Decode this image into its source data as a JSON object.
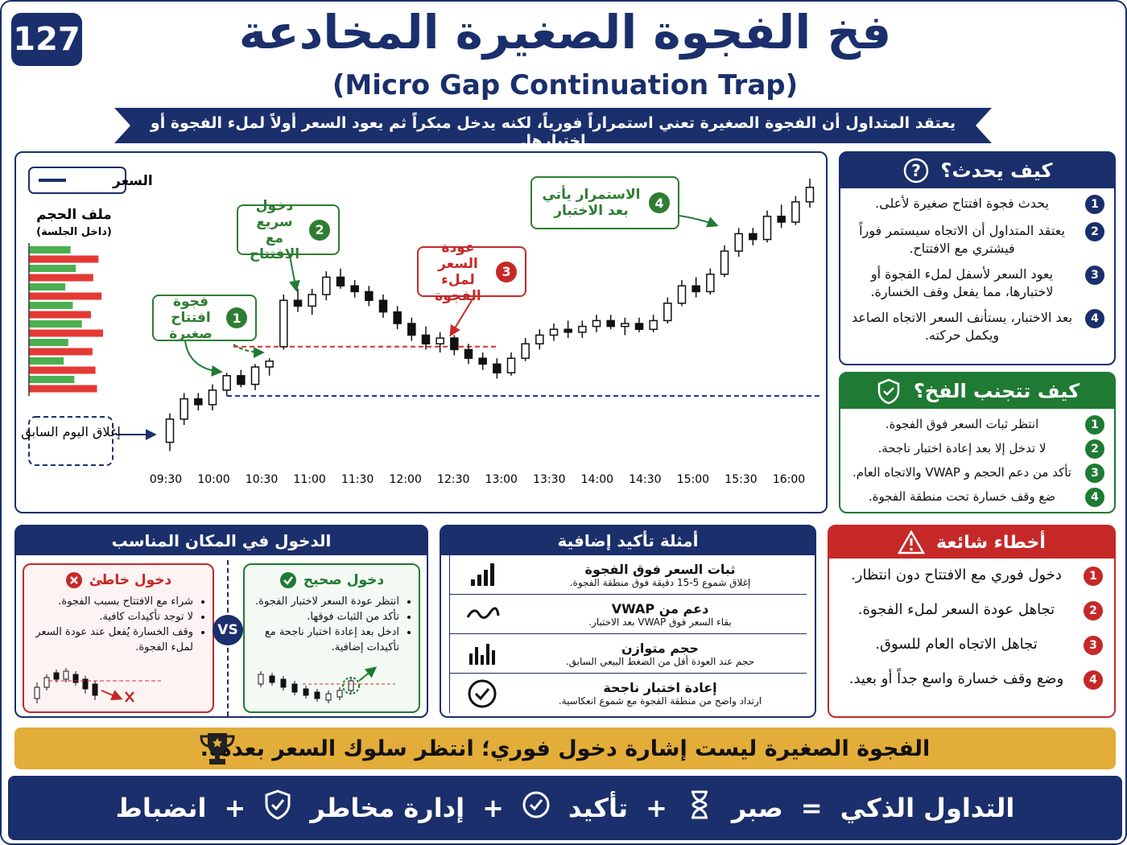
{
  "badge": "127",
  "header": {
    "title": "فخ الفجوة الصغيرة المخادعة",
    "subtitle": "(Micro Gap Continuation Trap)",
    "banner": "يعتقد المتداول أن الفجوة الصغيرة تعني استمراراً فورياً، لكنه يدخل مبكراً ثم يعود السعر أولاً لملء الفجوة أو اختبارها."
  },
  "price_chart": {
    "type": "candlestick",
    "legend": "السعر",
    "volume_title": "ملف الحجم",
    "volume_subtitle": "(داخل الجلسة)",
    "prev_close_label": "إغلاق اليوم السابق",
    "x_labels": [
      "09:30",
      "10:00",
      "10:30",
      "11:00",
      "11:30",
      "12:00",
      "12:30",
      "13:00",
      "13:30",
      "14:00",
      "14:30",
      "15:00",
      "15:30",
      "16:00"
    ],
    "ylim": [
      0,
      100
    ],
    "candles": [
      [
        4,
        14,
        1,
        12
      ],
      [
        12,
        21,
        10,
        19
      ],
      [
        19,
        21,
        15,
        17
      ],
      [
        17,
        24,
        15,
        22
      ],
      [
        22,
        28,
        20,
        27
      ],
      [
        27,
        29,
        23,
        24
      ],
      [
        24,
        31,
        22,
        30
      ],
      [
        30,
        33,
        27,
        32
      ],
      [
        37,
        55,
        36,
        53
      ],
      [
        53,
        57,
        49,
        51
      ],
      [
        51,
        57,
        48,
        55
      ],
      [
        55,
        63,
        53,
        61
      ],
      [
        61,
        64,
        57,
        58
      ],
      [
        58,
        60,
        54,
        56
      ],
      [
        56,
        58,
        51,
        53
      ],
      [
        53,
        55,
        47,
        49
      ],
      [
        49,
        51,
        43,
        45
      ],
      [
        45,
        47,
        39,
        41
      ],
      [
        41,
        44,
        36,
        38
      ],
      [
        38,
        42,
        35,
        40
      ],
      [
        40,
        41,
        34,
        36
      ],
      [
        36,
        38,
        31,
        33
      ],
      [
        33,
        35,
        29,
        31
      ],
      [
        31,
        33,
        26,
        28
      ],
      [
        28,
        35,
        27,
        33
      ],
      [
        33,
        40,
        32,
        38
      ],
      [
        38,
        43,
        36,
        41
      ],
      [
        41,
        45,
        39,
        43
      ],
      [
        43,
        46,
        40,
        42
      ],
      [
        42,
        46,
        40,
        44
      ],
      [
        44,
        48,
        42,
        46
      ],
      [
        46,
        48,
        43,
        44
      ],
      [
        44,
        47,
        41,
        45
      ],
      [
        45,
        47,
        42,
        43
      ],
      [
        43,
        48,
        42,
        46
      ],
      [
        46,
        54,
        45,
        52
      ],
      [
        52,
        60,
        51,
        58
      ],
      [
        58,
        61,
        54,
        56
      ],
      [
        56,
        64,
        55,
        62
      ],
      [
        62,
        72,
        61,
        70
      ],
      [
        70,
        78,
        68,
        76
      ],
      [
        76,
        78,
        72,
        74
      ],
      [
        74,
        84,
        73,
        82
      ],
      [
        82,
        86,
        78,
        80
      ],
      [
        80,
        89,
        79,
        87
      ],
      [
        87,
        95,
        85,
        92
      ]
    ],
    "up_color": "#ffffff",
    "down_color": "#111111",
    "line_color": "#1a2f6b",
    "gap_level": 37,
    "gap_color": "#d32f2f",
    "prev_close_level": 20,
    "prev_close_color": "#1a3a9b",
    "volume_profile": [
      55,
      92,
      62,
      85,
      48,
      96,
      58,
      82,
      70,
      98,
      52,
      84,
      46,
      88,
      60,
      90
    ],
    "volume_colors": [
      "#4caf50",
      "#e53935"
    ],
    "annotations": [
      {
        "num": 1,
        "text": "فجوة افتتاح صغيرة",
        "color": "#2e7d32"
      },
      {
        "num": 2,
        "text": "دخول سريع مع الافتتاح",
        "color": "#2e7d32"
      },
      {
        "num": 3,
        "text": "عودة السعر لملء الفجوة",
        "color": "#c62828"
      },
      {
        "num": 4,
        "text": "الاستمرار يأتي بعد الاختبار",
        "color": "#2e7d32"
      }
    ]
  },
  "how": {
    "title": "كيف يحدث؟",
    "items": [
      {
        "num": 1,
        "text": "يحدث فجوة افتتاح صغيرة لأعلى."
      },
      {
        "num": 2,
        "text": "يعتقد المتداول أن الاتجاه سيستمر فوراً فيشتري مع الافتتاح."
      },
      {
        "num": 3,
        "text": "يعود السعر لأسفل لملء الفجوة أو لاختبارها، مما يفعل وقف الخسارة."
      },
      {
        "num": 4,
        "text": "بعد الاختبار، يستأنف السعر الاتجاه الصاعد ويكمل حركته."
      }
    ]
  },
  "avoid": {
    "title": "كيف تتجنب الفخ؟",
    "items": [
      {
        "num": 1,
        "text": "انتظر ثبات السعر فوق الفجوة."
      },
      {
        "num": 2,
        "text": "لا تدخل إلا بعد إعادة اختبار ناجحة."
      },
      {
        "num": 3,
        "text": "تأكد من دعم الحجم و VWAP والاتجاه العام."
      },
      {
        "num": 4,
        "text": "ضع وقف خسارة تحت منطقة الفجوة."
      }
    ]
  },
  "entry": {
    "title": "الدخول في المكان المناسب",
    "vs": "VS",
    "correct": {
      "title": "دخول صحيح",
      "items": [
        "انتظر عودة السعر لاختبار الفجوة.",
        "تأكد من الثبات فوقها.",
        "ادخل بعد إعادة اختبار ناجحة مع تأكيدات إضافية."
      ]
    },
    "wrong": {
      "title": "دخول خاطئ",
      "items": [
        "شراء مع الافتتاح بسبب الفجوة.",
        "لا توجد تأكيدات كافية.",
        "وقف الخسارة يُفعل عند عودة السعر لملء الفجوة."
      ]
    }
  },
  "confirm": {
    "title": "أمثلة تأكيد إضافية",
    "items": [
      {
        "title": "ثبات السعر فوق الفجوة",
        "desc": "إغلاق شموع 5-15 دقيقة فوق منطقة الفجوة."
      },
      {
        "title": "دعم من VWAP",
        "desc": "بقاء السعر فوق VWAP بعد الاختبار."
      },
      {
        "title": "حجم متوازن",
        "desc": "حجم عند العودة أقل من الضغط البيعي السابق."
      },
      {
        "title": "إعادة اختبار ناجحة",
        "desc": "ارتداد واضح من منطقة الفجوة مع شموع انعكاسية."
      }
    ]
  },
  "mistakes": {
    "title": "أخطاء شائعة",
    "items": [
      {
        "num": 1,
        "text": "دخول فوري مع الافتتاح دون انتظار."
      },
      {
        "num": 2,
        "text": "تجاهل عودة السعر لملء الفجوة."
      },
      {
        "num": 3,
        "text": "تجاهل الاتجاه العام للسوق."
      },
      {
        "num": 4,
        "text": "وضع وقف خسارة واسع جداً أو بعيد."
      }
    ]
  },
  "tip": "الفجوة الصغيرة ليست إشارة دخول فوري؛ انتظر سلوك السعر بعدها.",
  "formula": [
    "التداول الذكي",
    "=",
    "صبر",
    "+",
    "تأكيد",
    "+",
    "إدارة مخاطر",
    "+",
    "انضباط"
  ]
}
